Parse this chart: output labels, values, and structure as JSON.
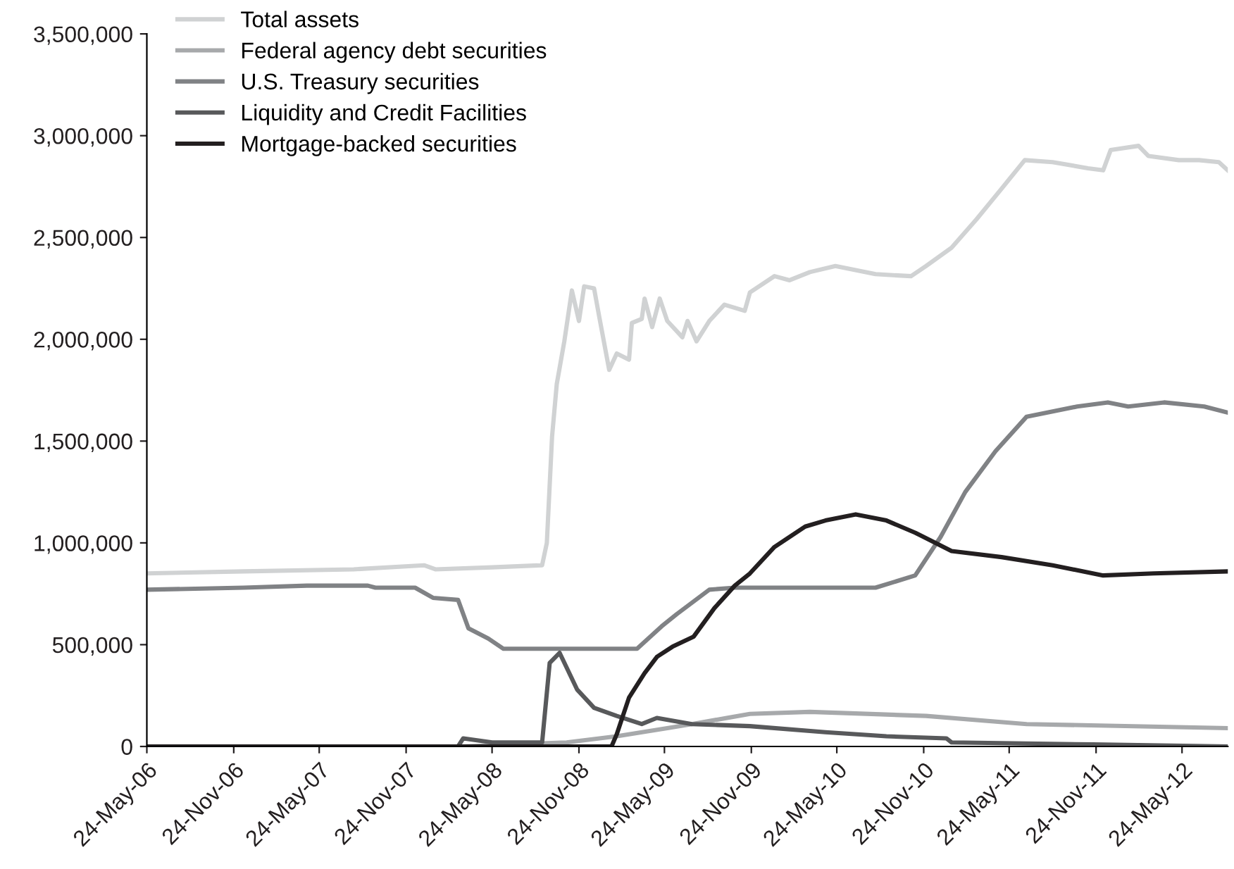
{
  "chart_data": {
    "type": "line",
    "legend": "top left",
    "grid": false,
    "marker": "none",
    "line_style": "solid",
    "xlim": [
      "2006-05-24",
      "2012-08-29"
    ],
    "xticks": [
      {
        "value": "2006-05-24",
        "label": "24-May-06"
      },
      {
        "value": "2006-11-24",
        "label": "24-Nov-06"
      },
      {
        "value": "2007-05-24",
        "label": "24-May-07"
      },
      {
        "value": "2007-11-24",
        "label": "24-Nov-07"
      },
      {
        "value": "2008-05-24",
        "label": "24-May-08"
      },
      {
        "value": "2008-11-24",
        "label": "24-Nov-08"
      },
      {
        "value": "2009-05-24",
        "label": "24-May-09"
      },
      {
        "value": "2009-11-24",
        "label": "24-Nov-09"
      },
      {
        "value": "2010-05-24",
        "label": "24-May-10"
      },
      {
        "value": "2010-11-24",
        "label": "24-Nov-10"
      },
      {
        "value": "2011-05-24",
        "label": "24-May-11"
      },
      {
        "value": "2011-11-24",
        "label": "24-Nov-11"
      },
      {
        "value": "2012-05-24",
        "label": "24-May-12"
      }
    ],
    "ylim": [
      0,
      3500000
    ],
    "yticks": [
      {
        "value": 0,
        "label": "0"
      },
      {
        "value": 500000,
        "label": "500,000"
      },
      {
        "value": 1000000,
        "label": "1,000,000"
      },
      {
        "value": 1500000,
        "label": "1,500,000"
      },
      {
        "value": 2000000,
        "label": "2,000,000"
      },
      {
        "value": 2500000,
        "label": "2,500,000"
      },
      {
        "value": 3000000,
        "label": "3,000,000"
      },
      {
        "value": 3500000,
        "label": "3,500,000"
      }
    ],
    "series": [
      {
        "name": "Total assets",
        "color": "#d0d2d3",
        "x": [
          "2006-05-24",
          "2006-12-15",
          "2007-08-05",
          "2008-01-01",
          "2008-01-25",
          "2008-05-24",
          "2008-09-07",
          "2008-09-17",
          "2008-09-28",
          "2008-10-08",
          "2008-10-24",
          "2008-11-09",
          "2008-11-24",
          "2008-12-05",
          "2008-12-26",
          "2009-01-06",
          "2009-01-27",
          "2009-02-12",
          "2009-03-10",
          "2009-03-16",
          "2009-04-06",
          "2009-04-12",
          "2009-04-28",
          "2009-05-14",
          "2009-05-30",
          "2009-07-01",
          "2009-07-12",
          "2009-07-31",
          "2009-08-27",
          "2009-09-28",
          "2009-11-10",
          "2009-11-21",
          "2010-01-12",
          "2010-02-13",
          "2010-03-28",
          "2010-05-21",
          "2010-08-14",
          "2010-10-28",
          "2010-11-29",
          "2011-01-22",
          "2011-03-16",
          "2011-05-08",
          "2011-06-26",
          "2011-08-24",
          "2011-11-07",
          "2011-12-09",
          "2011-12-25",
          "2012-02-22",
          "2012-03-14",
          "2012-05-17",
          "2012-06-29",
          "2012-08-10",
          "2012-08-29"
        ],
        "values": [
          850000,
          860000,
          870000,
          890000,
          870000,
          880000,
          890000,
          1000000,
          1520000,
          1780000,
          1990000,
          2240000,
          2090000,
          2260000,
          2250000,
          2110000,
          1850000,
          1930000,
          1900000,
          2080000,
          2100000,
          2200000,
          2060000,
          2200000,
          2090000,
          2010000,
          2090000,
          1990000,
          2090000,
          2170000,
          2140000,
          2230000,
          2310000,
          2290000,
          2330000,
          2360000,
          2320000,
          2310000,
          2360000,
          2450000,
          2590000,
          2740000,
          2880000,
          2870000,
          2840000,
          2830000,
          2930000,
          2950000,
          2900000,
          2880000,
          2880000,
          2870000,
          2830000
        ]
      },
      {
        "name": "Federal agency debt securities",
        "color": "#a7a9ab",
        "x": [
          "2006-05-24",
          "2008-03-24",
          "2008-10-29",
          "2009-02-12",
          "2009-05-30",
          "2009-07-21",
          "2009-11-21",
          "2010-03-28",
          "2010-11-29",
          "2011-06-30",
          "2012-08-29"
        ],
        "values": [
          0,
          0,
          20000,
          50000,
          90000,
          110000,
          160000,
          170000,
          150000,
          110000,
          90000
        ]
      },
      {
        "name": "U.S. Treasury securities",
        "color": "#808285",
        "x": [
          "2006-05-24",
          "2006-12-15",
          "2007-04-28",
          "2007-09-04",
          "2007-09-20",
          "2007-12-13",
          "2008-01-20",
          "2008-03-13",
          "2008-04-04",
          "2008-05-16",
          "2008-06-17",
          "2009-03-27",
          "2009-05-18",
          "2009-06-19",
          "2009-08-27",
          "2009-10-20",
          "2010-08-14",
          "2010-11-06",
          "2010-12-30",
          "2011-02-20",
          "2011-04-25",
          "2011-06-30",
          "2011-10-15",
          "2011-12-19",
          "2012-01-31",
          "2012-04-16",
          "2012-07-10",
          "2012-08-29"
        ],
        "values": [
          770000,
          780000,
          790000,
          790000,
          780000,
          780000,
          730000,
          720000,
          580000,
          530000,
          480000,
          480000,
          590000,
          650000,
          770000,
          780000,
          780000,
          840000,
          1030000,
          1250000,
          1450000,
          1620000,
          1670000,
          1690000,
          1670000,
          1690000,
          1670000,
          1640000
        ]
      },
      {
        "name": "Liquidity and Credit Facilities",
        "color": "#58595b",
        "x": [
          "2006-05-24",
          "2008-03-13",
          "2008-03-24",
          "2008-05-24",
          "2008-09-07",
          "2008-09-23",
          "2008-10-14",
          "2008-11-20",
          "2008-12-26",
          "2009-02-12",
          "2009-04-06",
          "2009-05-08",
          "2009-07-21",
          "2009-11-21",
          "2010-04-30",
          "2010-09-06",
          "2011-01-11",
          "2011-01-22",
          "2011-11-17",
          "2012-08-29"
        ],
        "values": [
          0,
          0,
          40000,
          20000,
          20000,
          410000,
          460000,
          280000,
          190000,
          150000,
          110000,
          140000,
          110000,
          100000,
          70000,
          50000,
          40000,
          20000,
          10000,
          0
        ]
      },
      {
        "name": "Mortgage-backed securities",
        "color": "#231f20",
        "x": [
          "2006-05-24",
          "2009-02-01",
          "2009-02-12",
          "2009-03-10",
          "2009-04-12",
          "2009-05-08",
          "2009-06-10",
          "2009-07-25",
          "2009-09-07",
          "2009-10-20",
          "2009-11-21",
          "2010-01-12",
          "2010-03-18",
          "2010-04-30",
          "2010-07-03",
          "2010-09-06",
          "2010-11-06",
          "2011-01-22",
          "2011-05-08",
          "2011-08-24",
          "2011-12-09",
          "2012-03-25",
          "2012-08-29"
        ],
        "values": [
          0,
          0,
          60000,
          240000,
          360000,
          440000,
          490000,
          540000,
          680000,
          790000,
          850000,
          980000,
          1080000,
          1110000,
          1140000,
          1110000,
          1050000,
          960000,
          930000,
          890000,
          840000,
          850000,
          860000
        ]
      }
    ]
  }
}
